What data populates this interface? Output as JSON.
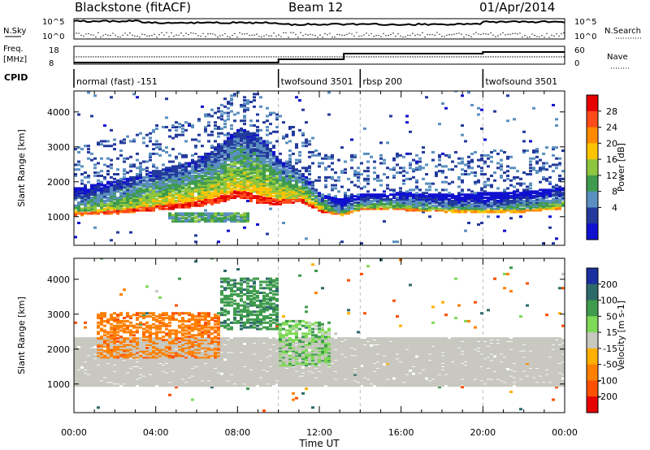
{
  "header": {
    "radar": "Blackstone (fitACF)",
    "beam": "Beam 12",
    "date": "01/Apr/2014"
  },
  "top_panels": {
    "nsky_label": "N.Sky",
    "nsky_ticks": [
      "10^5",
      "10^0"
    ],
    "nsearch_label": "N.Search",
    "nsearch_ticks": [
      "10^5",
      "10^0"
    ],
    "freq_label": "Freq.",
    "freq_unit": "[MHz]",
    "freq_ticks": [
      "18",
      "8"
    ],
    "nave_label": "Nave",
    "nave_ticks": [
      "60",
      "0"
    ],
    "cpid_label": "CPID",
    "cpid_segments": [
      {
        "label": "normal (fast) -151",
        "start": 0,
        "end": 10
      },
      {
        "label": "twofsound 3501",
        "start": 10,
        "end": 14
      },
      {
        "label": "rbsp 200",
        "start": 14,
        "end": 20
      },
      {
        "label": "twofsound 3501",
        "start": 20,
        "end": 24
      }
    ]
  },
  "power_colorbar": {
    "label": "Power [dB]",
    "ticks": [
      "28",
      "24",
      "20",
      "16",
      "12",
      "8",
      "4"
    ],
    "colors": [
      "#e60000",
      "#ff4a1a",
      "#ff8a00",
      "#ffc400",
      "#8ec63f",
      "#3f9b4d",
      "#5a8fc0",
      "#233a9c",
      "#1010d0"
    ]
  },
  "velocity_colorbar": {
    "label": "Velocity [m s-1]",
    "ticks": [
      "200",
      "100",
      "50",
      "15",
      "-15",
      "-50",
      "-100",
      "-200"
    ],
    "colors": [
      "#1a2fa0",
      "#2f6a6a",
      "#3f9b4d",
      "#7ed957",
      "#c8c8c0",
      "#ffb000",
      "#ff8000",
      "#ff5000",
      "#e60000"
    ]
  },
  "chart_data": [
    {
      "type": "heatmap",
      "title": "Power",
      "xlabel": "Time UT",
      "ylabel": "Slant Range [km]",
      "xlim": [
        0,
        24
      ],
      "ylim": [
        180,
        4600
      ],
      "x_ticks": [
        "00:00",
        "04:00",
        "08:00",
        "12:00",
        "16:00",
        "20:00",
        "00:00"
      ],
      "y_ticks": [
        1000,
        2000,
        3000,
        4000
      ],
      "main_echo_band": {
        "x": [
          0,
          2,
          4,
          6,
          7,
          8,
          9,
          10,
          11,
          12,
          13,
          14,
          16,
          18,
          20,
          22,
          24
        ],
        "lower_range_km": [
          1000,
          1050,
          1150,
          1250,
          1350,
          1500,
          1350,
          1300,
          1400,
          1100,
          1000,
          1150,
          1150,
          1100,
          1100,
          1100,
          1200
        ],
        "upper_range_km": [
          1800,
          2000,
          2300,
          2600,
          3000,
          3500,
          3300,
          2600,
          2300,
          1600,
          1500,
          1600,
          1650,
          1600,
          1650,
          1700,
          1800
        ],
        "peak_power_db": [
          24,
          26,
          28,
          28,
          28,
          28,
          28,
          28,
          28,
          28,
          20,
          24,
          24,
          22,
          20,
          22,
          24
        ]
      },
      "secondary_echo": {
        "x_start": 4.5,
        "x_end": 8.5,
        "range_km": [
          800,
          1100
        ],
        "power_db": 12
      }
    },
    {
      "type": "heatmap",
      "title": "Velocity",
      "xlabel": "Time UT",
      "ylabel": "Slant Range [km]",
      "xlim": [
        0,
        24
      ],
      "ylim": [
        180,
        4600
      ],
      "x_ticks": [
        "00:00",
        "04:00",
        "08:00",
        "12:00",
        "16:00",
        "20:00",
        "00:00"
      ],
      "y_ticks": [
        1000,
        2000,
        3000,
        4000
      ],
      "regions": [
        {
          "x_start": 0,
          "x_end": 24,
          "range_km": [
            900,
            2300
          ],
          "velocity": -5,
          "note": "ground scatter"
        },
        {
          "x_start": 1,
          "x_end": 7,
          "range_km": [
            1700,
            3000
          ],
          "velocity": -80
        },
        {
          "x_start": 7,
          "x_end": 10,
          "range_km": [
            2500,
            4000
          ],
          "velocity": 80
        },
        {
          "x_start": 10,
          "x_end": 12.5,
          "range_km": [
            1500,
            2800
          ],
          "velocity": 40
        }
      ]
    }
  ]
}
